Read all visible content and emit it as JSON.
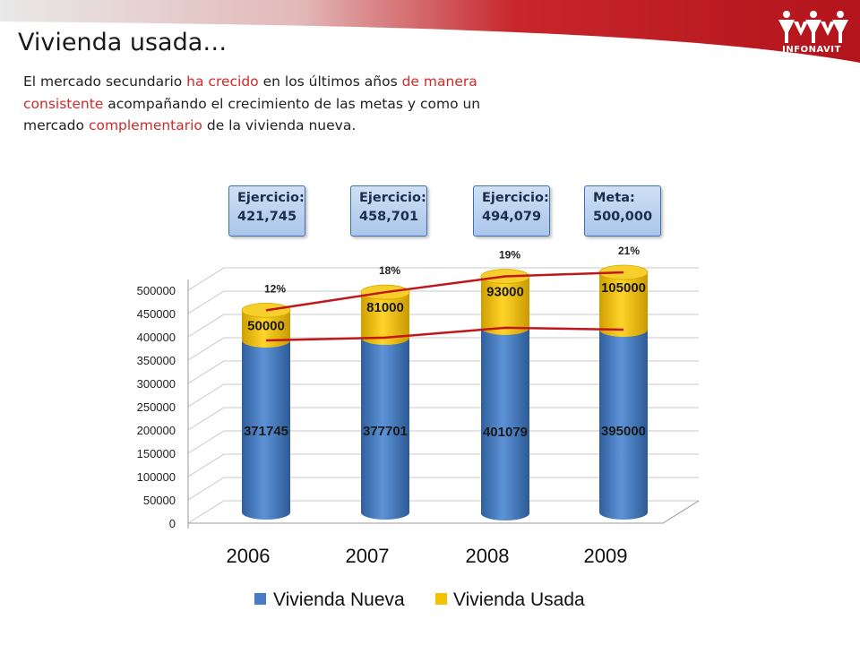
{
  "slide": {
    "title": "Vivienda usada…",
    "intro": [
      {
        "text": "El mercado secundario ",
        "highlight": false
      },
      {
        "text": "ha crecido",
        "highlight": true
      },
      {
        "text": " en los últimos años ",
        "highlight": false
      },
      {
        "text": "de manera consistente",
        "highlight": true
      },
      {
        "text": " acompañando el crecimiento de las metas y como un mercado ",
        "highlight": false
      },
      {
        "text": "complementario",
        "highlight": true
      },
      {
        "text": " de la vivienda nueva.",
        "highlight": false
      }
    ],
    "logo_text": "INFONAVIT",
    "colors": {
      "header_red": "#c41e24",
      "highlight_red": "#d12a2a"
    }
  },
  "callouts": [
    {
      "label": "Ejercicio:",
      "value": "421,745"
    },
    {
      "label": "Ejercicio:",
      "value": "458,701"
    },
    {
      "label": "Ejercicio:",
      "value": "494,079"
    },
    {
      "label": "Meta:",
      "value": "500,000"
    }
  ],
  "chart_data": {
    "type": "bar",
    "stacked": true,
    "categories": [
      "2006",
      "2007",
      "2008",
      "2009"
    ],
    "series": [
      {
        "name": "Vivienda Nueva",
        "values": [
          371745,
          377701,
          401079,
          395000
        ],
        "color": "#4a7cc4"
      },
      {
        "name": "Vivienda Usada",
        "values": [
          50000,
          81000,
          93000,
          105000
        ],
        "color": "#f2c100"
      }
    ],
    "share_labels": [
      "12%",
      "18%",
      "19%",
      "21%"
    ],
    "ylim": [
      0,
      500000
    ],
    "yticks": [
      "0",
      "50000",
      "100000",
      "150000",
      "200000",
      "250000",
      "300000",
      "350000",
      "400000",
      "450000",
      "500000"
    ],
    "trend_line_color": "#c0161c",
    "legend_position": "bottom",
    "grid": true
  }
}
